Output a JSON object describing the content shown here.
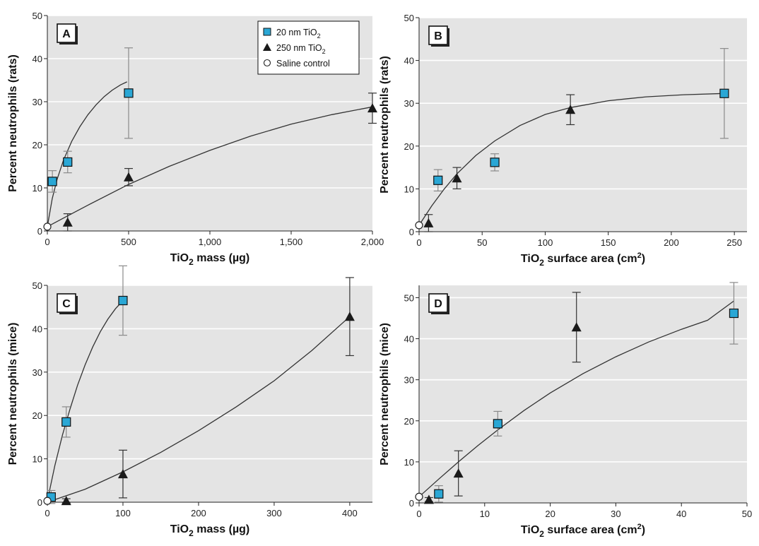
{
  "colors": {
    "plot_bg": "#e4e4e4",
    "grid": "#ffffff",
    "square_fill": "#2aa7d5",
    "triangle_fill": "#1a1a1a",
    "fit_line": "#333333",
    "error_bar": "#8a8a8a"
  },
  "legend": {
    "items": [
      {
        "marker": "square",
        "label_pre": "20 nm TiO",
        "sub": "2"
      },
      {
        "marker": "triangle",
        "label_pre": "250 nm TiO",
        "sub": "2"
      },
      {
        "marker": "circle",
        "label_pre": "Saline control",
        "sub": ""
      }
    ],
    "placement": "top-right of panel A"
  },
  "chart_data": [
    {
      "panel": "A",
      "type": "scatter",
      "xlabel_pre": "TiO",
      "xlabel_sub": "2",
      "xlabel_post": " mass (µg)",
      "xlabel_sup": "",
      "ylabel": "Percent neutrophils (rats)",
      "xlim": [
        0,
        2000
      ],
      "ylim": [
        0,
        50
      ],
      "xticks": [
        0,
        500,
        1000,
        1500,
        2000
      ],
      "xtick_labels": [
        "0",
        "500",
        "1,000",
        "1,500",
        "2,000"
      ],
      "yticks": [
        0,
        10,
        20,
        30,
        40,
        50
      ],
      "ytick_labels": [
        "0",
        "10",
        "20",
        "30",
        "40",
        "50"
      ],
      "grid": "horizontal",
      "series": [
        {
          "name": "20 nm TiO2",
          "marker": "square",
          "x": [
            31,
            125,
            500
          ],
          "y": [
            11.5,
            16,
            32
          ],
          "err": [
            2.5,
            2.5,
            10.5
          ]
        },
        {
          "name": "250 nm TiO2",
          "marker": "triangle",
          "x": [
            125,
            500,
            2000
          ],
          "y": [
            2,
            12.5,
            28.5
          ],
          "err": [
            2,
            2,
            3.5
          ]
        },
        {
          "name": "Saline control",
          "marker": "circle",
          "x": [
            0
          ],
          "y": [
            1
          ],
          "err": [
            0
          ]
        }
      ],
      "fits": [
        {
          "x": [
            0,
            30,
            60,
            100,
            150,
            200,
            250,
            300,
            350,
            400,
            450,
            490
          ],
          "y": [
            1,
            7.5,
            12,
            16.5,
            20.8,
            24.2,
            27,
            29.3,
            31.2,
            32.7,
            33.9,
            34.6
          ]
        },
        {
          "x": [
            0,
            125,
            250,
            500,
            750,
            1000,
            1250,
            1500,
            1750,
            2000
          ],
          "y": [
            1,
            3.5,
            6,
            10.8,
            15,
            18.7,
            22,
            24.8,
            27,
            28.8
          ]
        }
      ]
    },
    {
      "panel": "B",
      "type": "scatter",
      "xlabel_pre": "TiO",
      "xlabel_sub": "2",
      "xlabel_post": " surface area (cm",
      "xlabel_sup": "2",
      "xlabel_end": ")",
      "ylabel": "Percent neutrophils (rats)",
      "xlim": [
        0,
        260
      ],
      "ylim": [
        0,
        50
      ],
      "xticks": [
        0,
        50,
        100,
        150,
        200,
        250
      ],
      "xtick_labels": [
        "0",
        "50",
        "100",
        "150",
        "200",
        "250"
      ],
      "yticks": [
        0,
        10,
        20,
        30,
        40,
        50
      ],
      "ytick_labels": [
        "0",
        "10",
        "20",
        "30",
        "40",
        "50"
      ],
      "grid": "horizontal",
      "series": [
        {
          "name": "20 nm TiO2",
          "marker": "square",
          "x": [
            15,
            60,
            242
          ],
          "y": [
            12,
            16.2,
            32.3
          ],
          "err": [
            2.5,
            2,
            10.5
          ]
        },
        {
          "name": "250 nm TiO2",
          "marker": "triangle",
          "x": [
            7.5,
            30,
            120
          ],
          "y": [
            2,
            12.5,
            28.5
          ],
          "err": [
            2,
            2.5,
            3.5
          ]
        },
        {
          "name": "Saline control",
          "marker": "circle",
          "x": [
            0
          ],
          "y": [
            1.5
          ],
          "err": [
            0
          ]
        }
      ],
      "fits": [
        {
          "x": [
            0,
            10,
            20,
            30,
            45,
            60,
            80,
            100,
            120,
            150,
            180,
            210,
            242
          ],
          "y": [
            1.5,
            6,
            10,
            13.5,
            17.8,
            21.2,
            24.8,
            27.4,
            29,
            30.6,
            31.5,
            32,
            32.3
          ]
        }
      ]
    },
    {
      "panel": "C",
      "type": "scatter",
      "xlabel_pre": "TiO",
      "xlabel_sub": "2",
      "xlabel_post": " mass (µg)",
      "xlabel_sup": "",
      "ylabel": "Percent neutrophils (mice)",
      "xlim": [
        0,
        430
      ],
      "ylim": [
        0,
        50
      ],
      "xticks": [
        0,
        100,
        200,
        300,
        400
      ],
      "xtick_labels": [
        "0",
        "100",
        "200",
        "300",
        "400"
      ],
      "yticks": [
        0,
        10,
        20,
        30,
        40,
        50
      ],
      "ytick_labels": [
        "0",
        "10",
        "20",
        "30",
        "40",
        "50"
      ],
      "grid": "horizontal",
      "series": [
        {
          "name": "20 nm TiO2",
          "marker": "square",
          "x": [
            5,
            25,
            100
          ],
          "y": [
            1.2,
            18.5,
            46.5
          ],
          "err": [
            1.5,
            3.5,
            8
          ]
        },
        {
          "name": "250 nm TiO2",
          "marker": "triangle",
          "x": [
            25,
            100,
            400
          ],
          "y": [
            0.3,
            6.5,
            42.8
          ],
          "err": [
            0.5,
            5.5,
            9
          ]
        },
        {
          "name": "Saline control",
          "marker": "circle",
          "x": [
            0
          ],
          "y": [
            0.3
          ],
          "err": [
            0
          ]
        }
      ],
      "fits": [
        {
          "x": [
            0,
            10,
            20,
            30,
            40,
            50,
            60,
            70,
            80,
            90,
            100
          ],
          "y": [
            0.3,
            8.5,
            15.5,
            21.5,
            27,
            31.7,
            35.8,
            39.3,
            42.2,
            44.6,
            46.5
          ]
        },
        {
          "x": [
            0,
            50,
            100,
            150,
            200,
            250,
            300,
            350,
            400
          ],
          "y": [
            0,
            3,
            7,
            11.5,
            16.5,
            22,
            28,
            35,
            42.8
          ]
        }
      ]
    },
    {
      "panel": "D",
      "type": "scatter",
      "xlabel_pre": "TiO",
      "xlabel_sub": "2",
      "xlabel_post": " surface area (cm",
      "xlabel_sup": "2",
      "xlabel_end": ")",
      "ylabel": "Percent neutrophils (mice)",
      "xlim": [
        0,
        50
      ],
      "ylim": [
        0,
        53
      ],
      "xticks": [
        0,
        10,
        20,
        30,
        40,
        50
      ],
      "xtick_labels": [
        "0",
        "10",
        "20",
        "30",
        "40",
        "50"
      ],
      "yticks": [
        0,
        10,
        20,
        30,
        40,
        50
      ],
      "ytick_labels": [
        "0",
        "10",
        "20",
        "30",
        "40",
        "50"
      ],
      "grid": "horizontal",
      "series": [
        {
          "name": "20 nm TiO2",
          "marker": "square",
          "x": [
            3,
            12,
            48
          ],
          "y": [
            2.2,
            19.3,
            46.2
          ],
          "err": [
            2,
            3,
            7.5
          ]
        },
        {
          "name": "250 nm TiO2",
          "marker": "triangle",
          "x": [
            1.5,
            6,
            24
          ],
          "y": [
            0.8,
            7.2,
            42.8
          ],
          "err": [
            0.5,
            5.5,
            8.5
          ]
        },
        {
          "name": "Saline control",
          "marker": "circle",
          "x": [
            0
          ],
          "y": [
            1.5
          ],
          "err": [
            0
          ]
        }
      ],
      "fits": [
        {
          "x": [
            0,
            3,
            6,
            9,
            12,
            16,
            20,
            25,
            30,
            35,
            40,
            44,
            48
          ],
          "y": [
            1.5,
            5.8,
            10,
            14,
            17.8,
            22.5,
            26.8,
            31.5,
            35.6,
            39.2,
            42.3,
            44.5,
            49.2
          ]
        }
      ]
    }
  ]
}
